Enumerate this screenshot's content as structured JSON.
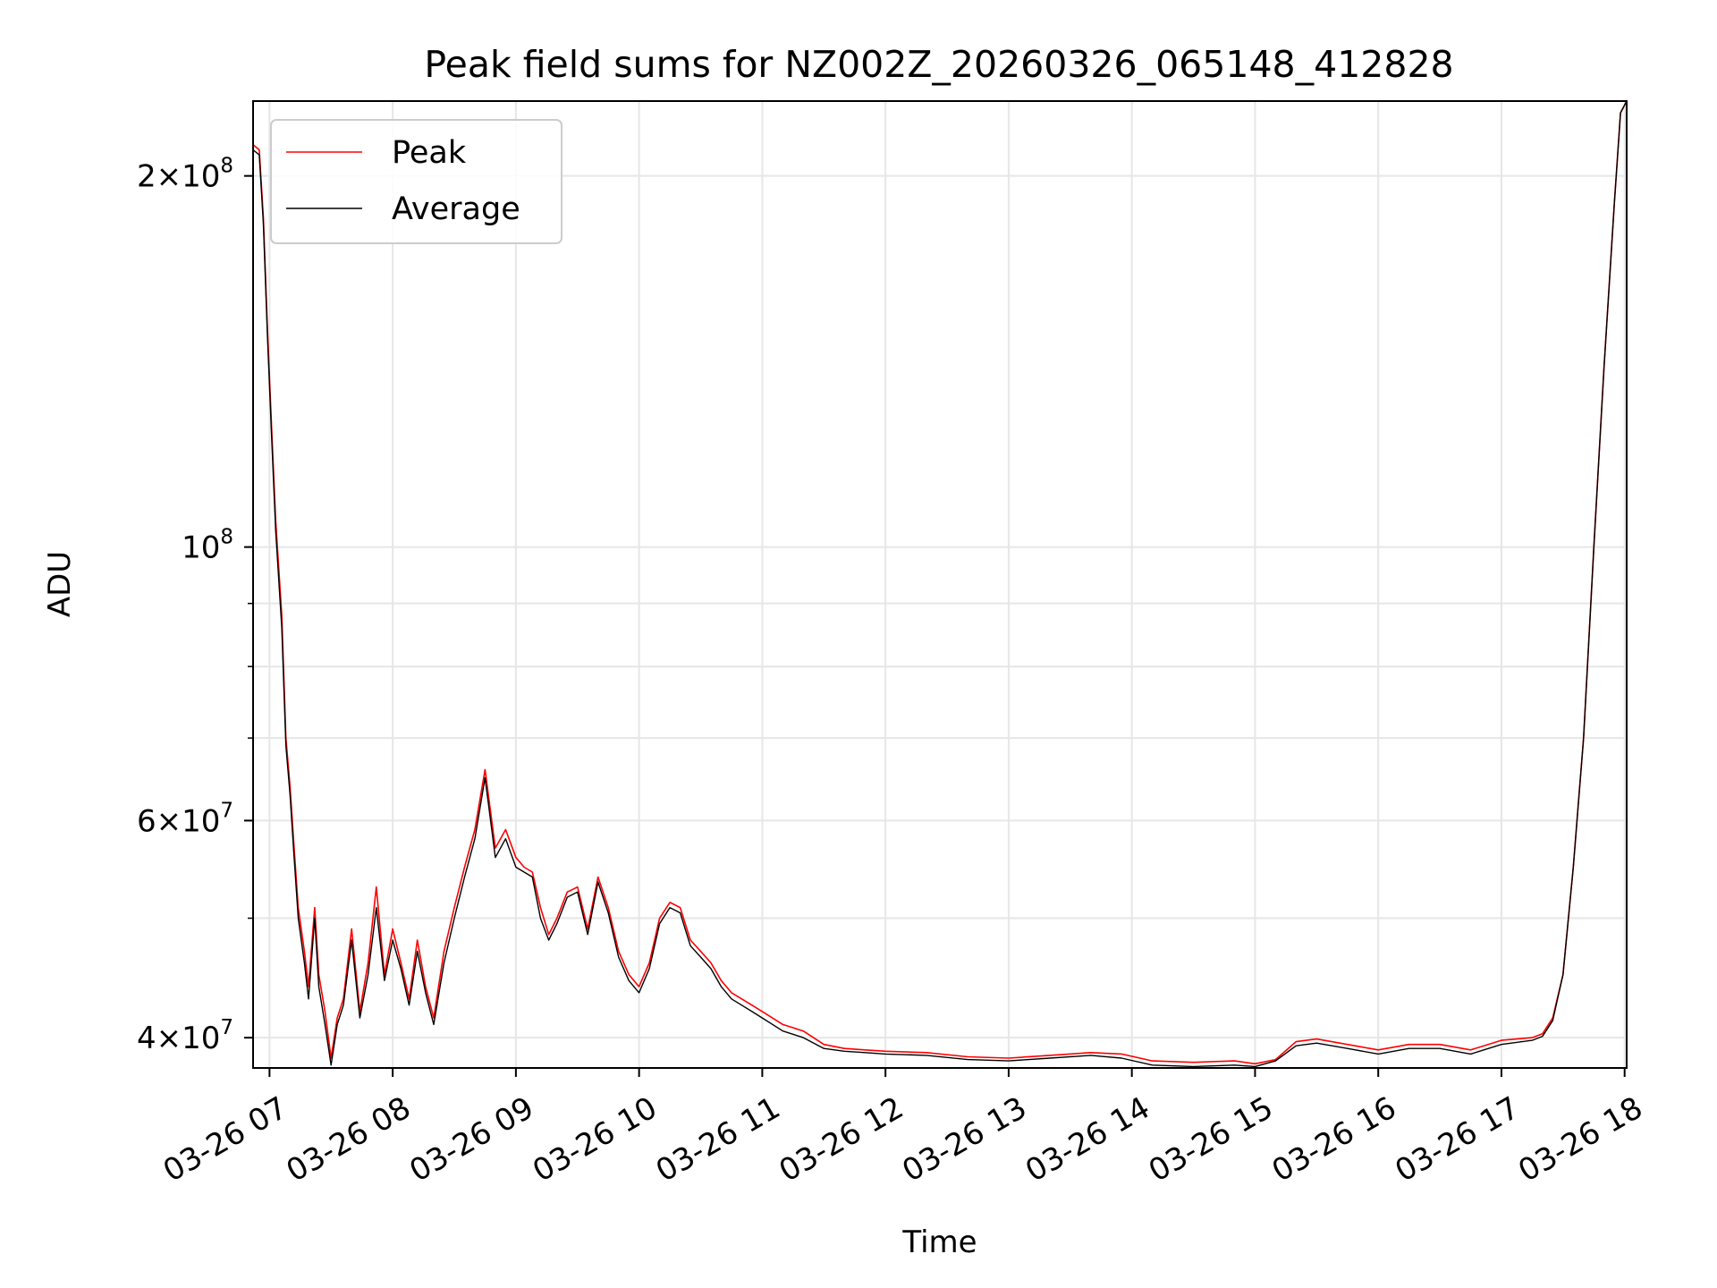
{
  "chart_data": {
    "type": "line",
    "title": "Peak field sums for NZ002Z_20260326_065148_412828",
    "xlabel": "Time",
    "ylabel": "ADU",
    "yscale": "log",
    "xlim": [
      "2026-03-26 06:52",
      "2026-03-26 18:01"
    ],
    "ylim": [
      37800000,
      230000000
    ],
    "grid": true,
    "legend": "upper-left",
    "x_tick_labels": [
      "03-26 07",
      "03-26 08",
      "03-26 09",
      "03-26 10",
      "03-26 11",
      "03-26 12",
      "03-26 13",
      "03-26 14",
      "03-26 15",
      "03-26 16",
      "03-26 17",
      "03-26 18"
    ],
    "y_ticks": [
      {
        "value": 40000000,
        "mantissa": "4",
        "exponent": "7"
      },
      {
        "value": 60000000,
        "mantissa": "6",
        "exponent": "7"
      },
      {
        "value": 100000000,
        "mantissa": "",
        "exponent": "8"
      },
      {
        "value": 200000000,
        "mantissa": "2",
        "exponent": "8"
      }
    ],
    "series": [
      {
        "name": "Peak",
        "color": "#ff0000",
        "x": [
          "2026-03-26 06:52",
          "2026-03-26 06:55",
          "2026-03-26 06:57",
          "2026-03-26 06:59",
          "2026-03-26 07:01",
          "2026-03-26 07:03",
          "2026-03-26 07:06",
          "2026-03-26 07:08",
          "2026-03-26 07:10",
          "2026-03-26 07:12",
          "2026-03-26 07:14",
          "2026-03-26 07:17",
          "2026-03-26 07:19",
          "2026-03-26 07:22",
          "2026-03-26 07:24",
          "2026-03-26 07:27",
          "2026-03-26 07:30",
          "2026-03-26 07:33",
          "2026-03-26 07:36",
          "2026-03-26 07:40",
          "2026-03-26 07:44",
          "2026-03-26 07:48",
          "2026-03-26 07:52",
          "2026-03-26 07:56",
          "2026-03-26 08:00",
          "2026-03-26 08:04",
          "2026-03-26 08:08",
          "2026-03-26 08:12",
          "2026-03-26 08:16",
          "2026-03-26 08:20",
          "2026-03-26 08:25",
          "2026-03-26 08:30",
          "2026-03-26 08:35",
          "2026-03-26 08:40",
          "2026-03-26 08:45",
          "2026-03-26 08:50",
          "2026-03-26 08:55",
          "2026-03-26 09:00",
          "2026-03-26 09:04",
          "2026-03-26 09:08",
          "2026-03-26 09:12",
          "2026-03-26 09:16",
          "2026-03-26 09:20",
          "2026-03-26 09:25",
          "2026-03-26 09:30",
          "2026-03-26 09:35",
          "2026-03-26 09:40",
          "2026-03-26 09:45",
          "2026-03-26 09:50",
          "2026-03-26 09:55",
          "2026-03-26 10:00",
          "2026-03-26 10:05",
          "2026-03-26 10:10",
          "2026-03-26 10:15",
          "2026-03-26 10:20",
          "2026-03-26 10:25",
          "2026-03-26 10:30",
          "2026-03-26 10:35",
          "2026-03-26 10:40",
          "2026-03-26 10:45",
          "2026-03-26 10:50",
          "2026-03-26 10:55",
          "2026-03-26 11:00",
          "2026-03-26 11:10",
          "2026-03-26 11:20",
          "2026-03-26 11:30",
          "2026-03-26 11:40",
          "2026-03-26 11:50",
          "2026-03-26 12:00",
          "2026-03-26 12:20",
          "2026-03-26 12:40",
          "2026-03-26 13:00",
          "2026-03-26 13:20",
          "2026-03-26 13:40",
          "2026-03-26 13:55",
          "2026-03-26 14:10",
          "2026-03-26 14:30",
          "2026-03-26 14:50",
          "2026-03-26 15:00",
          "2026-03-26 15:10",
          "2026-03-26 15:20",
          "2026-03-26 15:30",
          "2026-03-26 15:45",
          "2026-03-26 16:00",
          "2026-03-26 16:15",
          "2026-03-26 16:30",
          "2026-03-26 16:45",
          "2026-03-26 17:00",
          "2026-03-26 17:15",
          "2026-03-26 17:20",
          "2026-03-26 17:25",
          "2026-03-26 17:30",
          "2026-03-26 17:35",
          "2026-03-26 17:40",
          "2026-03-26 17:45",
          "2026-03-26 17:50",
          "2026-03-26 17:55",
          "2026-03-26 17:58",
          "2026-03-26 18:01"
        ],
        "y": [
          212000000,
          210000000,
          185000000,
          150000000,
          125000000,
          105000000,
          88000000,
          70000000,
          64000000,
          57000000,
          51000000,
          47000000,
          44000000,
          51000000,
          45000000,
          42000000,
          38500000,
          41500000,
          43000000,
          49000000,
          42000000,
          46000000,
          53000000,
          45000000,
          49000000,
          46000000,
          43000000,
          48000000,
          44000000,
          41500000,
          47000000,
          51000000,
          55000000,
          59000000,
          66000000,
          57000000,
          59000000,
          56000000,
          55000000,
          54500000,
          51000000,
          48500000,
          50000000,
          52500000,
          53000000,
          49000000,
          54000000,
          51000000,
          47000000,
          45000000,
          44000000,
          46000000,
          50000000,
          51500000,
          51000000,
          48000000,
          47000000,
          46000000,
          44500000,
          43500000,
          43000000,
          42500000,
          42000000,
          41000000,
          40500000,
          39500000,
          39200000,
          39100000,
          39000000,
          38900000,
          38600000,
          38500000,
          38700000,
          38900000,
          38800000,
          38300000,
          38200000,
          38300000,
          38100000,
          38400000,
          39700000,
          39900000,
          39500000,
          39100000,
          39500000,
          39500000,
          39100000,
          39800000,
          40000000,
          40300000,
          41500000,
          45000000,
          55000000,
          70000000,
          100000000,
          140000000,
          190000000,
          225000000,
          230000000
        ]
      },
      {
        "name": "Average",
        "color": "#000000",
        "x": [
          "2026-03-26 06:52",
          "2026-03-26 06:55",
          "2026-03-26 06:57",
          "2026-03-26 06:59",
          "2026-03-26 07:01",
          "2026-03-26 07:03",
          "2026-03-26 07:06",
          "2026-03-26 07:08",
          "2026-03-26 07:10",
          "2026-03-26 07:12",
          "2026-03-26 07:14",
          "2026-03-26 07:17",
          "2026-03-26 07:19",
          "2026-03-26 07:22",
          "2026-03-26 07:24",
          "2026-03-26 07:27",
          "2026-03-26 07:30",
          "2026-03-26 07:33",
          "2026-03-26 07:36",
          "2026-03-26 07:40",
          "2026-03-26 07:44",
          "2026-03-26 07:48",
          "2026-03-26 07:52",
          "2026-03-26 07:56",
          "2026-03-26 08:00",
          "2026-03-26 08:04",
          "2026-03-26 08:08",
          "2026-03-26 08:12",
          "2026-03-26 08:16",
          "2026-03-26 08:20",
          "2026-03-26 08:25",
          "2026-03-26 08:30",
          "2026-03-26 08:35",
          "2026-03-26 08:40",
          "2026-03-26 08:45",
          "2026-03-26 08:50",
          "2026-03-26 08:55",
          "2026-03-26 09:00",
          "2026-03-26 09:04",
          "2026-03-26 09:08",
          "2026-03-26 09:12",
          "2026-03-26 09:16",
          "2026-03-26 09:20",
          "2026-03-26 09:25",
          "2026-03-26 09:30",
          "2026-03-26 09:35",
          "2026-03-26 09:40",
          "2026-03-26 09:45",
          "2026-03-26 09:50",
          "2026-03-26 09:55",
          "2026-03-26 10:00",
          "2026-03-26 10:05",
          "2026-03-26 10:10",
          "2026-03-26 10:15",
          "2026-03-26 10:20",
          "2026-03-26 10:25",
          "2026-03-26 10:30",
          "2026-03-26 10:35",
          "2026-03-26 10:40",
          "2026-03-26 10:45",
          "2026-03-26 10:50",
          "2026-03-26 10:55",
          "2026-03-26 11:00",
          "2026-03-26 11:10",
          "2026-03-26 11:20",
          "2026-03-26 11:30",
          "2026-03-26 11:40",
          "2026-03-26 11:50",
          "2026-03-26 12:00",
          "2026-03-26 12:20",
          "2026-03-26 12:40",
          "2026-03-26 13:00",
          "2026-03-26 13:20",
          "2026-03-26 13:40",
          "2026-03-26 13:55",
          "2026-03-26 14:10",
          "2026-03-26 14:30",
          "2026-03-26 14:50",
          "2026-03-26 15:00",
          "2026-03-26 15:10",
          "2026-03-26 15:20",
          "2026-03-26 15:30",
          "2026-03-26 15:45",
          "2026-03-26 16:00",
          "2026-03-26 16:15",
          "2026-03-26 16:30",
          "2026-03-26 16:45",
          "2026-03-26 17:00",
          "2026-03-26 17:15",
          "2026-03-26 17:20",
          "2026-03-26 17:25",
          "2026-03-26 17:30",
          "2026-03-26 17:35",
          "2026-03-26 17:40",
          "2026-03-26 17:45",
          "2026-03-26 17:50",
          "2026-03-26 17:55",
          "2026-03-26 17:58",
          "2026-03-26 18:01"
        ],
        "y": [
          210000000,
          208000000,
          183000000,
          148000000,
          123000000,
          103000000,
          86000000,
          69000000,
          63000000,
          56000000,
          50000000,
          46000000,
          43000000,
          50000000,
          44000000,
          41000000,
          38000000,
          41000000,
          42500000,
          48000000,
          41500000,
          45000000,
          51000000,
          44500000,
          48000000,
          45500000,
          42500000,
          47000000,
          43500000,
          41000000,
          46000000,
          50000000,
          54000000,
          58000000,
          65000000,
          56000000,
          58000000,
          55000000,
          54500000,
          54000000,
          50000000,
          48000000,
          49500000,
          52000000,
          52500000,
          48500000,
          53500000,
          50500000,
          46500000,
          44500000,
          43500000,
          45500000,
          49500000,
          51000000,
          50500000,
          47500000,
          46500000,
          45500000,
          44000000,
          43000000,
          42500000,
          42000000,
          41500000,
          40500000,
          40000000,
          39200000,
          39000000,
          38900000,
          38800000,
          38700000,
          38400000,
          38300000,
          38500000,
          38700000,
          38500000,
          38000000,
          37900000,
          38000000,
          37900000,
          38300000,
          39400000,
          39600000,
          39200000,
          38800000,
          39200000,
          39200000,
          38800000,
          39500000,
          39800000,
          40100000,
          41300000,
          45000000,
          55000000,
          70000000,
          100000000,
          140000000,
          190000000,
          225000000,
          230000000
        ]
      }
    ]
  }
}
